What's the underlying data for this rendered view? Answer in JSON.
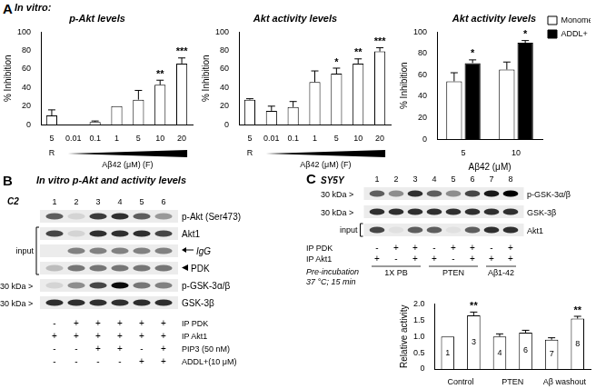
{
  "panel_labels": [
    "A",
    "B",
    "C"
  ],
  "chart_data": [
    {
      "type": "bar",
      "title": "p-Akt levels",
      "annotation": "In vitro:",
      "categories": [
        "5",
        "0.01",
        "0.1",
        "1",
        "5",
        "10",
        "20"
      ],
      "x_groups": [
        {
          "label": "R",
          "first": 0,
          "last": 0
        },
        {
          "label": "Aβ42 (μM) (F)",
          "first": 1,
          "last": 6,
          "marker": "wedge"
        }
      ],
      "values": [
        10,
        0,
        3,
        20,
        27,
        43,
        66
      ],
      "errors": [
        6,
        0,
        1,
        0,
        10,
        5,
        6
      ],
      "significance": [
        null,
        null,
        null,
        null,
        null,
        "**",
        "***"
      ],
      "color": "#ffffff",
      "y_label": "% Inhibition",
      "ylim": [
        0,
        100
      ],
      "yticks": [
        0,
        20,
        40,
        60,
        80,
        100
      ],
      "grid": false
    },
    {
      "type": "bar",
      "title": "Akt activity levels",
      "categories": [
        "5",
        "0.01",
        "0.1",
        "1",
        "5",
        "10",
        "20"
      ],
      "x_groups": [
        {
          "label": "R",
          "first": 0,
          "last": 0
        },
        {
          "label": "Aβ42 (μM) (F)",
          "first": 1,
          "last": 6,
          "marker": "wedge"
        }
      ],
      "values": [
        27,
        15,
        19,
        46,
        55,
        66,
        79
      ],
      "errors": [
        1,
        5,
        6,
        12,
        6,
        5,
        4
      ],
      "significance": [
        null,
        null,
        null,
        null,
        "*",
        "**",
        "***"
      ],
      "color": "#ffffff",
      "y_label": "% Inhibition",
      "ylim": [
        0,
        100
      ],
      "yticks": [
        0,
        20,
        40,
        60,
        80,
        100
      ],
      "grid": false
    },
    {
      "type": "bar",
      "title": "Akt activity levels",
      "categories": [
        "5",
        "10"
      ],
      "x_label": "Aβ42 (μM)",
      "series": [
        {
          "name": "Monomer",
          "color": "#ffffff",
          "values": [
            54,
            65
          ],
          "errors": [
            8,
            7
          ],
          "significance": [
            null,
            null
          ]
        },
        {
          "name": "ADDL+",
          "color": "#000000",
          "values": [
            71,
            90
          ],
          "errors": [
            3,
            2
          ],
          "significance": [
            "*",
            "*"
          ]
        }
      ],
      "legend": "right",
      "y_label": "% Inhibition",
      "ylim": [
        0,
        100
      ],
      "yticks": [
        0,
        20,
        40,
        60,
        80,
        100
      ],
      "grid": false
    },
    {
      "type": "bar",
      "categories": [
        "1",
        "3",
        "4",
        "6",
        "7",
        "8"
      ],
      "x_groups": [
        {
          "label": "Control",
          "first": 0,
          "last": 1
        },
        {
          "label": "PTEN",
          "first": 2,
          "last": 3
        },
        {
          "label": "Aβ washout",
          "first": 4,
          "last": 5
        }
      ],
      "values": [
        1,
        1.65,
        1,
        1.12,
        0.9,
        1.55
      ],
      "errors": [
        0,
        0.1,
        0.08,
        0.07,
        0.06,
        0.07
      ],
      "significance": [
        null,
        "**",
        null,
        null,
        null,
        "**"
      ],
      "color": "#ffffff",
      "y_label": "Relative activity",
      "tick_labels": "y",
      "ylim": [
        0,
        2
      ],
      "yticks": [
        0,
        0.5,
        {
          "value": 1,
          "label": "1.0"
        },
        1.5,
        {
          "value": 2,
          "label": "2.0"
        }
      ],
      "grid": false
    }
  ],
  "blots": [
    {
      "panel": "B",
      "title": "In vitro p-Akt and activity levels",
      "cell_line": "C2",
      "lanes": [
        "1",
        "2",
        "3",
        "4",
        "5",
        "6"
      ],
      "rows": [
        {
          "label": "p-Akt (Ser473)",
          "intensity": [
            0.6,
            0.1,
            0.75,
            0.8,
            0.6,
            0.35
          ]
        },
        {
          "label": "Akt1",
          "group": "input",
          "intensity": [
            0.7,
            0.1,
            0.8,
            0.8,
            0.8,
            0.7
          ]
        },
        {
          "label": "IgG",
          "group": "input",
          "marker": "arrow",
          "intensity": [
            0,
            0.45,
            0.45,
            0.45,
            0.45,
            0.45
          ]
        },
        {
          "label": "PDK",
          "group": "input",
          "marker": "arrowhead",
          "intensity": [
            0.2,
            0.5,
            0.5,
            0.5,
            0.5,
            0.5
          ]
        },
        {
          "label": "p-GSK-3α/β",
          "left_label": "30 kDa >",
          "intensity": [
            0.1,
            0.4,
            0.7,
            0.95,
            0.5,
            0.45
          ]
        },
        {
          "label": "GSK-3β",
          "left_label": "30 kDa >",
          "intensity": [
            0.8,
            0.8,
            0.8,
            0.8,
            0.8,
            0.8
          ]
        }
      ],
      "conditions": [
        {
          "label": "IP PDK",
          "values": [
            "-",
            "+",
            "+",
            "+",
            "+",
            "+"
          ]
        },
        {
          "label": "IP Akt1",
          "values": [
            "+",
            "+",
            "+",
            "+",
            "+",
            "+"
          ]
        },
        {
          "label": "PIP3 (50 nM)",
          "values": [
            "-",
            "-",
            "+",
            "+",
            "-",
            "+"
          ]
        },
        {
          "label": "ADDL+(10 μM)",
          "values": [
            "-",
            "-",
            "-",
            "-",
            "+",
            "+"
          ]
        }
      ]
    },
    {
      "panel": "C",
      "cell_line": "SY5Y",
      "lanes": [
        "1",
        "2",
        "3",
        "4",
        "5",
        "6",
        "7",
        "8"
      ],
      "rows": [
        {
          "label": "p-GSK-3α/β",
          "left_label": "30 kDa >",
          "intensity": [
            0.6,
            0.4,
            0.8,
            0.6,
            0.4,
            0.7,
            0.9,
            1
          ]
        },
        {
          "label": "GSK-3β",
          "left_label": "30 kDa >",
          "intensity": [
            0.8,
            0.8,
            0.8,
            0.8,
            0.8,
            0.8,
            0.8,
            0.8
          ]
        },
        {
          "label": "Akt1",
          "group": "input",
          "intensity": [
            0.7,
            0.05,
            0.6,
            0.6,
            0.05,
            0.6,
            0.8,
            0.8
          ]
        }
      ],
      "conditions": [
        {
          "label": "IP PDK",
          "values": [
            "-",
            "+",
            "+",
            "-",
            "+",
            "+",
            "-",
            "+"
          ]
        },
        {
          "label": "IP Akt1",
          "values": [
            "+",
            "-",
            "+",
            "+",
            "-",
            "+",
            "+",
            "+"
          ]
        }
      ],
      "pre_incubation": {
        "label": [
          "Pre-incubation",
          "37 °C; 15 min"
        ],
        "groups": [
          {
            "label": "1X PB",
            "first": 0,
            "last": 2
          },
          {
            "label": "PTEN",
            "first": 3,
            "last": 5
          },
          {
            "label": "Aβ1-42",
            "first": 6,
            "last": 7
          }
        ]
      }
    }
  ]
}
